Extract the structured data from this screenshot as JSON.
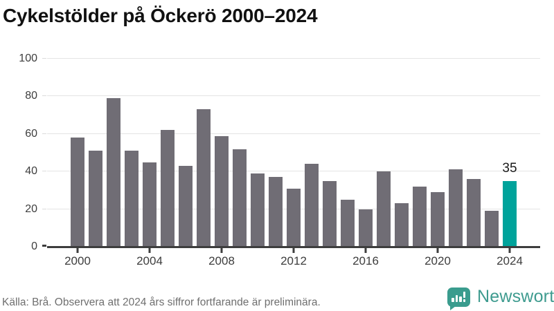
{
  "title": "Cykelstölder på Öckerö 2000–2024",
  "footer": {
    "source_note": "Källa: Brå. Observera att 2024 års siffror fortfarande är preliminära.",
    "brand": "Newsworthy"
  },
  "colors": {
    "bar": "#706d75",
    "highlight": "#00a39b",
    "brand_teal": "#3a9c8e",
    "gridline": "#e4e4e4",
    "axis": "#3d3d3d"
  },
  "chart_data": {
    "type": "bar",
    "title": "Cykelstölder på Öckerö 2000–2024",
    "x": [
      2000,
      2001,
      2002,
      2003,
      2004,
      2005,
      2006,
      2007,
      2008,
      2009,
      2010,
      2011,
      2012,
      2013,
      2014,
      2015,
      2016,
      2017,
      2018,
      2019,
      2020,
      2021,
      2022,
      2023,
      2024
    ],
    "values": [
      58,
      51,
      79,
      51,
      45,
      62,
      43,
      73,
      59,
      52,
      39,
      37,
      31,
      44,
      35,
      25,
      20,
      40,
      23,
      32,
      29,
      41,
      36,
      19,
      35
    ],
    "highlight_index": 24,
    "highlight_label": "35",
    "xlabel": "",
    "ylabel": "",
    "ylim": [
      0,
      100
    ],
    "yticks": [
      0,
      20,
      40,
      60,
      80,
      100
    ],
    "xticks": [
      2000,
      2004,
      2008,
      2012,
      2016,
      2020,
      2024
    ],
    "grid": true,
    "legend": false
  }
}
